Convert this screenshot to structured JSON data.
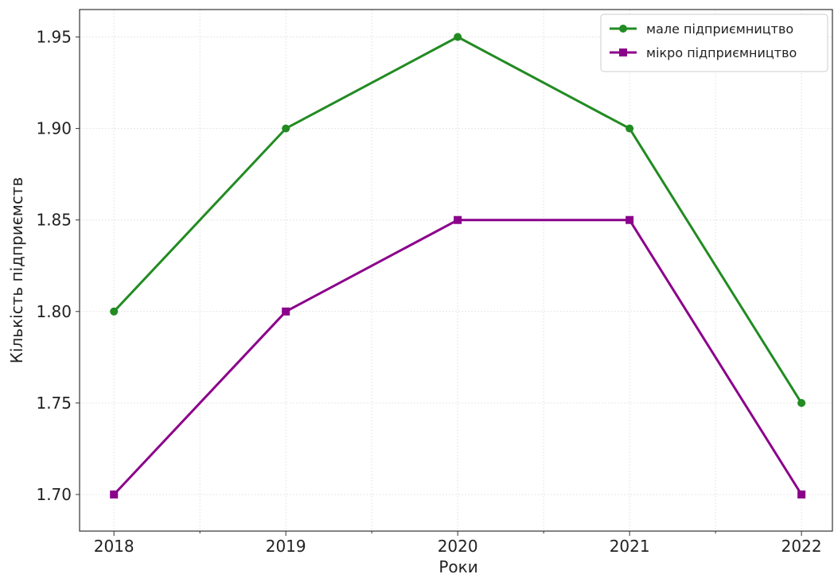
{
  "chart_data": {
    "type": "line",
    "title": "",
    "xlabel": "Роки",
    "ylabel": "Кількість підприємств",
    "categories": [
      "2018",
      "2019",
      "2020",
      "2021",
      "2022"
    ],
    "x": [
      2018,
      2019,
      2020,
      2021,
      2022
    ],
    "ylim": [
      1.68,
      1.965
    ],
    "yticks": [
      "1.70",
      "1.75",
      "1.80",
      "1.85",
      "1.90",
      "1.95"
    ],
    "grid": true,
    "legend_position": "top-right",
    "series": [
      {
        "name": "мале підприємництво",
        "values": [
          1.8,
          1.9,
          1.95,
          1.9,
          1.75
        ],
        "color": "#228b22",
        "marker": "circle"
      },
      {
        "name": "мікро підприємництво",
        "values": [
          1.7,
          1.8,
          1.85,
          1.85,
          1.7
        ],
        "color": "#8b008b",
        "marker": "square"
      }
    ]
  }
}
